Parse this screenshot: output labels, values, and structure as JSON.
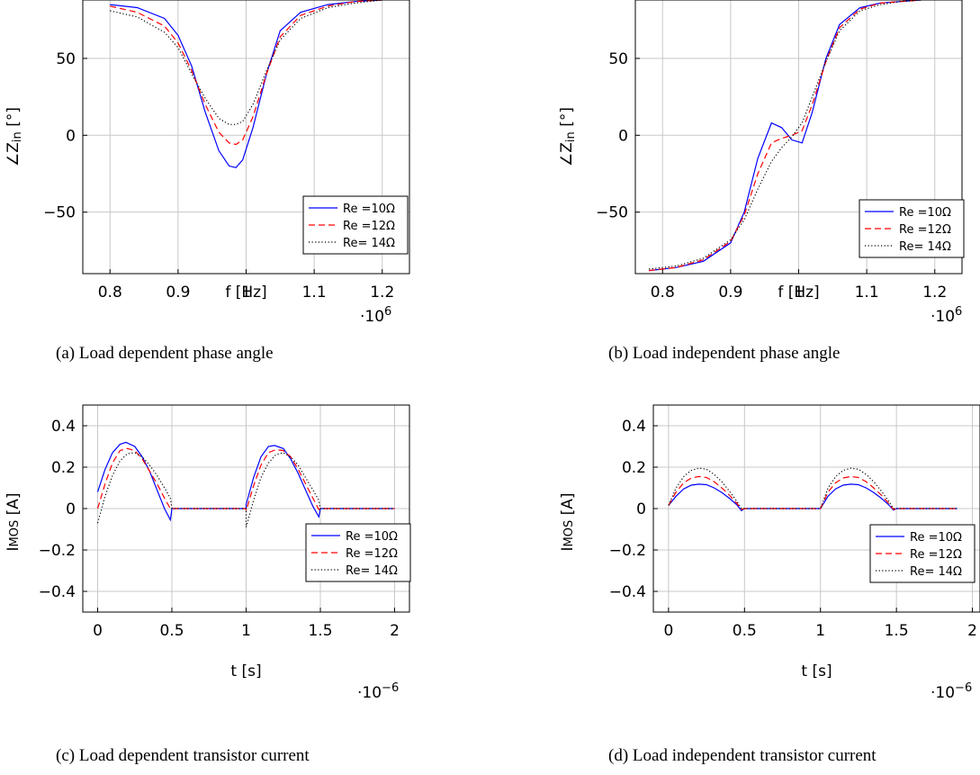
{
  "chart_data": [
    {
      "id": "a",
      "type": "line",
      "caption": "(a) Load dependent phase angle",
      "xlabel": "f [Hz]",
      "ylabel_parts": [
        "∠",
        "Z",
        "in",
        " [°]"
      ],
      "x_multiplier": "·10",
      "x_multiplier_exp": "6",
      "xlim": [
        0.76,
        1.24
      ],
      "ylim": [
        -90,
        88
      ],
      "xticks": [
        "0.8",
        "0.9",
        "1",
        "1.1",
        "1.2"
      ],
      "xtick_values": [
        0.8,
        0.9,
        1.0,
        1.1,
        1.2
      ],
      "yticks": [
        "−50",
        "0",
        "50"
      ],
      "ytick_values": [
        -50,
        0,
        50
      ],
      "legend": [
        "Re =10Ω",
        "Re =12Ω",
        "Re= 14Ω"
      ],
      "series": [
        {
          "name": "Re =10Ω",
          "x": [
            0.8,
            0.84,
            0.88,
            0.9,
            0.92,
            0.94,
            0.96,
            0.975,
            0.985,
            0.995,
            1.01,
            1.03,
            1.05,
            1.08,
            1.12,
            1.16,
            1.2
          ],
          "y": [
            85,
            83,
            76,
            65,
            45,
            15,
            -10,
            -20,
            -21,
            -16,
            5,
            40,
            68,
            80,
            85,
            87,
            88
          ]
        },
        {
          "name": "Re =12Ω",
          "x": [
            0.8,
            0.84,
            0.88,
            0.9,
            0.92,
            0.94,
            0.96,
            0.975,
            0.985,
            0.995,
            1.01,
            1.03,
            1.05,
            1.08,
            1.12,
            1.16,
            1.2
          ],
          "y": [
            84,
            80,
            71,
            60,
            42,
            20,
            2,
            -5,
            -6,
            -3,
            12,
            40,
            64,
            78,
            84,
            87,
            88
          ]
        },
        {
          "name": "Re= 14Ω",
          "x": [
            0.8,
            0.84,
            0.88,
            0.9,
            0.92,
            0.94,
            0.96,
            0.975,
            0.985,
            0.995,
            1.01,
            1.03,
            1.05,
            1.08,
            1.12,
            1.16,
            1.2
          ],
          "y": [
            81,
            77,
            67,
            57,
            40,
            24,
            11,
            7,
            7,
            9,
            20,
            42,
            62,
            76,
            83,
            86,
            88
          ]
        }
      ]
    },
    {
      "id": "b",
      "type": "line",
      "caption": "(b) Load independent phase angle",
      "xlabel": "f [Hz]",
      "ylabel_parts": [
        "∠",
        "Z",
        "in",
        " [°]"
      ],
      "x_multiplier": "·10",
      "x_multiplier_exp": "6",
      "xlim": [
        0.76,
        1.24
      ],
      "ylim": [
        -90,
        88
      ],
      "xticks": [
        "0.8",
        "0.9",
        "1",
        "1.1",
        "1.2"
      ],
      "xtick_values": [
        0.8,
        0.9,
        1.0,
        1.1,
        1.2
      ],
      "yticks": [
        "−50",
        "0",
        "50"
      ],
      "ytick_values": [
        -50,
        0,
        50
      ],
      "legend": [
        "Re =10Ω",
        "Re =12Ω",
        "Re= 14Ω"
      ],
      "series": [
        {
          "name": "Re =10Ω",
          "x": [
            0.78,
            0.82,
            0.86,
            0.9,
            0.92,
            0.94,
            0.96,
            0.975,
            0.99,
            1.005,
            1.02,
            1.04,
            1.06,
            1.09,
            1.12,
            1.15,
            1.18
          ],
          "y": [
            -88,
            -86,
            -82,
            -70,
            -50,
            -15,
            8,
            5,
            -3,
            -5,
            15,
            50,
            72,
            83,
            86,
            87,
            88
          ]
        },
        {
          "name": "Re =12Ω",
          "x": [
            0.78,
            0.82,
            0.86,
            0.9,
            0.92,
            0.94,
            0.96,
            0.975,
            0.99,
            1.005,
            1.02,
            1.04,
            1.06,
            1.09,
            1.12,
            1.15,
            1.18
          ],
          "y": [
            -88,
            -86,
            -81,
            -69,
            -52,
            -25,
            -5,
            -2,
            0,
            3,
            20,
            48,
            70,
            82,
            86,
            87,
            88
          ]
        },
        {
          "name": "Re= 14Ω",
          "x": [
            0.78,
            0.82,
            0.86,
            0.9,
            0.92,
            0.94,
            0.96,
            0.975,
            0.99,
            1.005,
            1.02,
            1.04,
            1.06,
            1.09,
            1.12,
            1.15,
            1.18
          ],
          "y": [
            -87,
            -85,
            -80,
            -68,
            -55,
            -35,
            -17,
            -8,
            -1,
            8,
            25,
            48,
            68,
            81,
            85,
            87,
            88
          ]
        }
      ]
    },
    {
      "id": "c",
      "type": "line",
      "caption": "(c) Load dependent transistor current",
      "xlabel": "t [s]",
      "ylabel_parts": [
        "I",
        "MOS",
        "",
        " [A]"
      ],
      "x_multiplier": "·10",
      "x_multiplier_exp": "−6",
      "xlim": [
        -0.1,
        2.1
      ],
      "ylim": [
        -0.5,
        0.5
      ],
      "xticks": [
        "0",
        "0.5",
        "1",
        "1.5",
        "2"
      ],
      "xtick_values": [
        0,
        0.5,
        1,
        1.5,
        2
      ],
      "yticks": [
        "−0.4",
        "−0.2",
        "0",
        "0.2",
        "0.4"
      ],
      "ytick_values": [
        -0.4,
        -0.2,
        0,
        0.2,
        0.4
      ],
      "legend": [
        "Re =10Ω",
        "Re =12Ω",
        "Re= 14Ω"
      ],
      "series": [
        {
          "name": "Re =10Ω",
          "x": [
            0,
            0.05,
            0.1,
            0.15,
            0.19,
            0.25,
            0.3,
            0.35,
            0.4,
            0.45,
            0.49,
            0.495,
            0.5,
            1.0,
            1.0,
            1.05,
            1.1,
            1.15,
            1.19,
            1.25,
            1.3,
            1.35,
            1.4,
            1.45,
            1.49,
            1.495,
            1.5,
            2.0
          ],
          "y": [
            0.08,
            0.19,
            0.27,
            0.31,
            0.32,
            0.3,
            0.25,
            0.18,
            0.09,
            0.0,
            -0.055,
            -0.03,
            0,
            0,
            0.02,
            0.15,
            0.25,
            0.3,
            0.305,
            0.29,
            0.24,
            0.17,
            0.09,
            0.01,
            -0.04,
            -0.02,
            0,
            0
          ]
        },
        {
          "name": "Re =12Ω",
          "x": [
            0,
            0.05,
            0.1,
            0.15,
            0.2,
            0.25,
            0.3,
            0.35,
            0.4,
            0.45,
            0.49,
            0.5,
            1.0,
            1.0,
            1.05,
            1.1,
            1.15,
            1.2,
            1.25,
            1.3,
            1.35,
            1.4,
            1.45,
            1.49,
            1.5,
            2.0
          ],
          "y": [
            0.0,
            0.12,
            0.22,
            0.28,
            0.29,
            0.28,
            0.24,
            0.18,
            0.12,
            0.05,
            0.0,
            0,
            0,
            -0.01,
            0.11,
            0.21,
            0.27,
            0.285,
            0.28,
            0.25,
            0.19,
            0.12,
            0.05,
            -0.005,
            0,
            0
          ]
        },
        {
          "name": "Re= 14Ω",
          "x": [
            0,
            0.05,
            0.1,
            0.15,
            0.2,
            0.25,
            0.3,
            0.35,
            0.4,
            0.45,
            0.49,
            0.5,
            1.0,
            1.0,
            1.05,
            1.1,
            1.15,
            1.2,
            1.25,
            1.3,
            1.35,
            1.4,
            1.45,
            1.49,
            1.5,
            2.0
          ],
          "y": [
            -0.07,
            0.06,
            0.16,
            0.23,
            0.265,
            0.27,
            0.25,
            0.21,
            0.16,
            0.1,
            0.05,
            0,
            0,
            -0.09,
            0.04,
            0.15,
            0.22,
            0.26,
            0.27,
            0.25,
            0.21,
            0.15,
            0.09,
            0.04,
            0,
            0
          ]
        }
      ]
    },
    {
      "id": "d",
      "type": "line",
      "caption": "(d) Load independent transistor current",
      "xlabel": "t [s]",
      "ylabel_parts": [
        "I",
        "MOS",
        "",
        " [A]"
      ],
      "x_multiplier": "·10",
      "x_multiplier_exp": "−6",
      "xlim": [
        -0.1,
        2.05
      ],
      "ylim": [
        -0.5,
        0.5
      ],
      "xticks": [
        "0",
        "0.5",
        "1",
        "1.5",
        "2"
      ],
      "xtick_values": [
        0,
        0.5,
        1,
        1.5,
        2
      ],
      "yticks": [
        "−0.4",
        "−0.2",
        "0",
        "0.2",
        "0.4"
      ],
      "ytick_values": [
        -0.4,
        -0.2,
        0,
        0.2,
        0.4
      ],
      "legend": [
        "Re =10Ω",
        "Re =12Ω",
        "Re= 14Ω"
      ],
      "series": [
        {
          "name": "Re =10Ω",
          "x": [
            0,
            0.05,
            0.1,
            0.15,
            0.2,
            0.25,
            0.3,
            0.35,
            0.4,
            0.45,
            0.48,
            0.5,
            1.0,
            1.05,
            1.1,
            1.15,
            1.2,
            1.25,
            1.3,
            1.35,
            1.4,
            1.45,
            1.48,
            1.5,
            1.9
          ],
          "y": [
            0.015,
            0.06,
            0.095,
            0.113,
            0.118,
            0.115,
            0.1,
            0.078,
            0.05,
            0.018,
            -0.01,
            0,
            0,
            0.06,
            0.095,
            0.113,
            0.118,
            0.115,
            0.1,
            0.078,
            0.05,
            0.018,
            -0.008,
            0,
            0
          ]
        },
        {
          "name": "Re =12Ω",
          "x": [
            0,
            0.05,
            0.1,
            0.15,
            0.2,
            0.25,
            0.3,
            0.35,
            0.4,
            0.45,
            0.48,
            0.5,
            1.0,
            1.05,
            1.1,
            1.15,
            1.2,
            1.25,
            1.3,
            1.35,
            1.4,
            1.45,
            1.48,
            1.5,
            1.9
          ],
          "y": [
            0.015,
            0.08,
            0.125,
            0.148,
            0.155,
            0.15,
            0.13,
            0.1,
            0.065,
            0.025,
            -0.005,
            0,
            0,
            0.08,
            0.125,
            0.148,
            0.155,
            0.15,
            0.13,
            0.1,
            0.065,
            0.025,
            -0.005,
            0,
            0
          ]
        },
        {
          "name": "Re= 14Ω",
          "x": [
            0,
            0.05,
            0.1,
            0.15,
            0.2,
            0.25,
            0.3,
            0.35,
            0.4,
            0.45,
            0.48,
            0.5,
            1.0,
            1.05,
            1.1,
            1.15,
            1.2,
            1.25,
            1.3,
            1.35,
            1.4,
            1.45,
            1.48,
            1.5,
            1.9
          ],
          "y": [
            0.015,
            0.1,
            0.155,
            0.185,
            0.195,
            0.19,
            0.165,
            0.13,
            0.085,
            0.035,
            0.0,
            0,
            0,
            0.1,
            0.155,
            0.185,
            0.195,
            0.19,
            0.165,
            0.13,
            0.085,
            0.035,
            0.0,
            0,
            0
          ]
        }
      ]
    }
  ],
  "series_colors": [
    "#0000ff",
    "#ff0000",
    "#000000"
  ],
  "series_dash": [
    "none",
    "7 4",
    "1.2 2.4"
  ]
}
